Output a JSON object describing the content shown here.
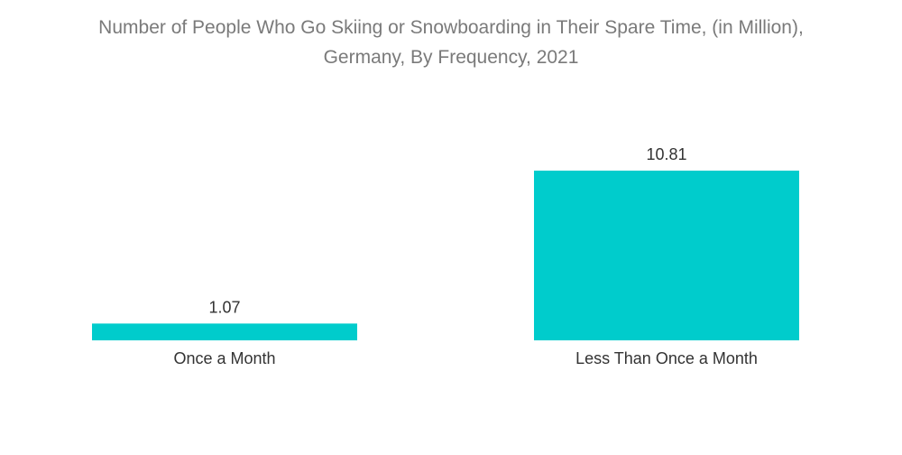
{
  "chart_data": {
    "type": "bar",
    "title_lines": [
      "Number of People Who Go Skiing or Snowboarding in Their Spare Time, (in Million),",
      "Germany, By Frequency, 2021"
    ],
    "categories": [
      "Once a Month",
      "Less Than Once a Month"
    ],
    "values": [
      1.07,
      10.81
    ],
    "data_labels": [
      "1.07",
      "10.81"
    ],
    "xlabel": "",
    "ylabel": "",
    "ylim": [
      0,
      10.81
    ],
    "grid": false,
    "legend": "none",
    "bar_color": "#00cccc"
  }
}
